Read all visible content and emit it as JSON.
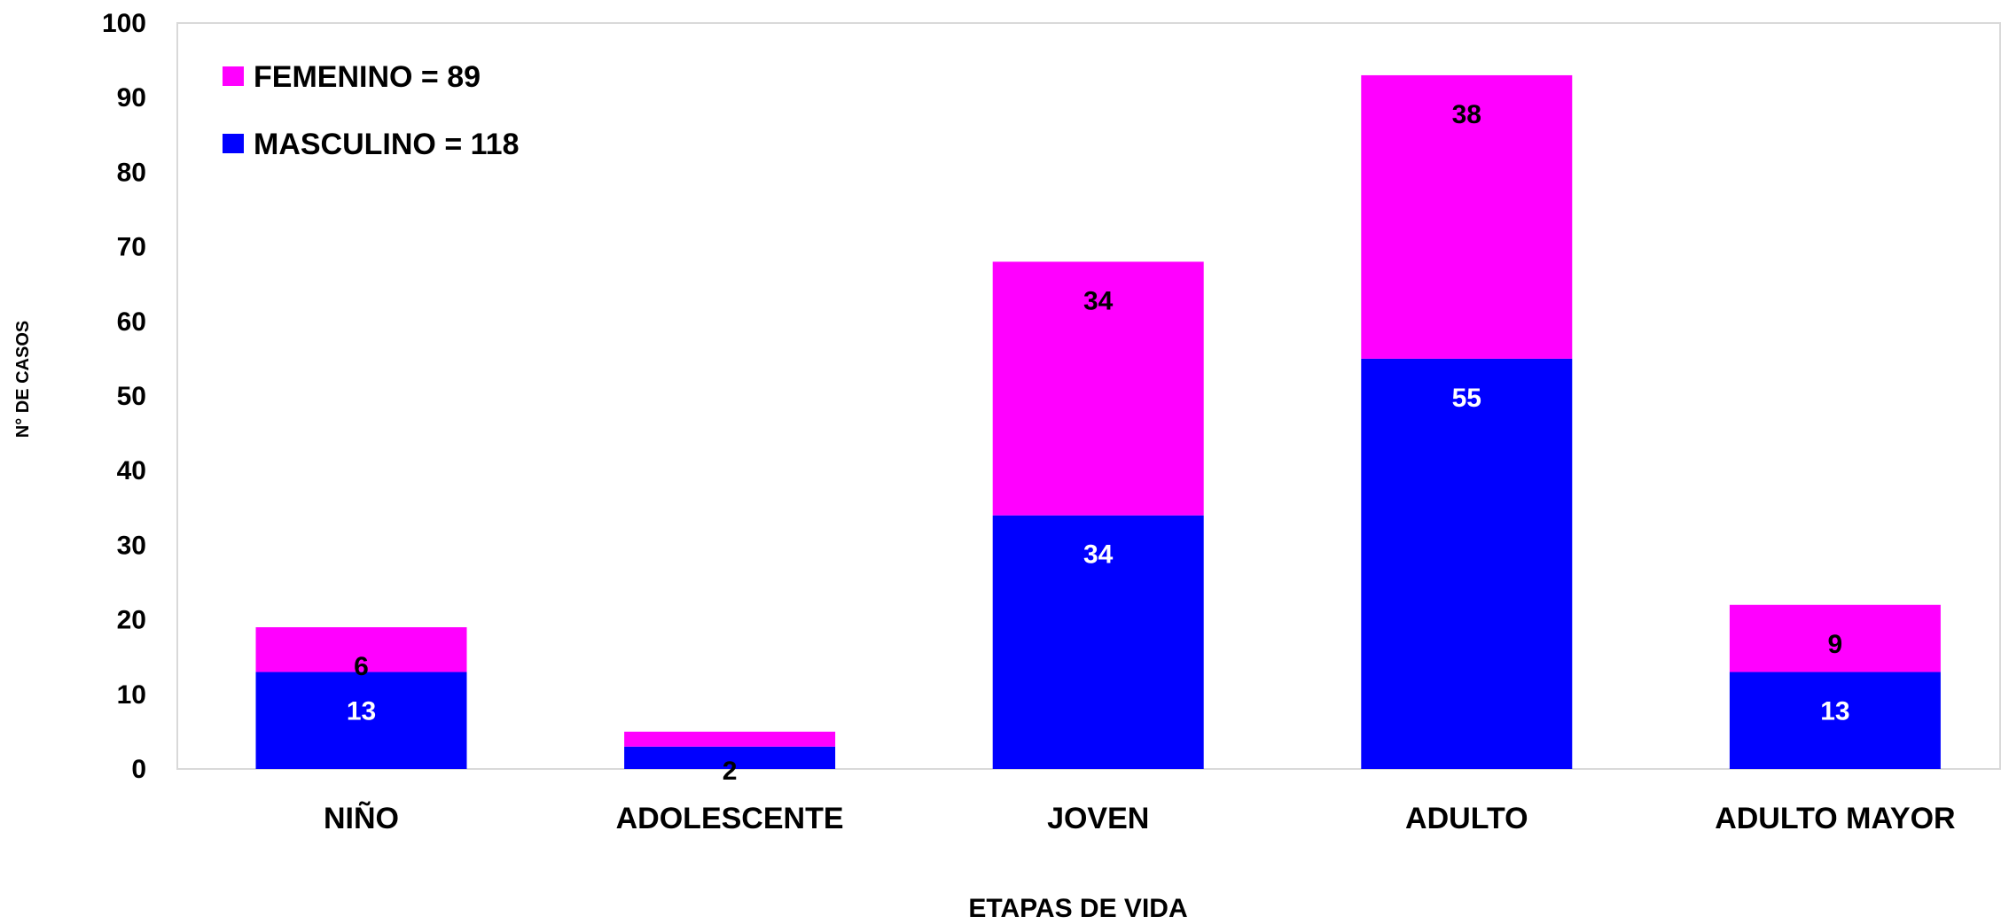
{
  "chart_data": {
    "type": "bar",
    "stacked": true,
    "title": "",
    "xlabel": "ETAPAS DE VIDA",
    "ylabel": "N° DE CASOS",
    "ylim": [
      0,
      100
    ],
    "yticks": [
      0,
      10,
      20,
      30,
      40,
      50,
      60,
      70,
      80,
      90,
      100
    ],
    "categories": [
      "NIÑO",
      "ADOLESCENTE",
      "JOVEN",
      "ADULTO",
      "ADULTO MAYOR"
    ],
    "series": [
      {
        "name": "MASCULINO",
        "values": [
          13,
          3,
          34,
          55,
          13
        ],
        "color": "#0000ff",
        "label_color": "#ffffff"
      },
      {
        "name": "FEMENINO",
        "values": [
          6,
          2,
          34,
          38,
          9
        ],
        "color": "#ff00ff",
        "label_color": "#000000"
      }
    ],
    "legend": {
      "position": "top-left",
      "entries": [
        {
          "text": "FEMENINO = 89",
          "color": "#ff00ff"
        },
        {
          "text": "MASCULINO = 118",
          "color": "#0000ff"
        }
      ]
    },
    "grid": false
  }
}
